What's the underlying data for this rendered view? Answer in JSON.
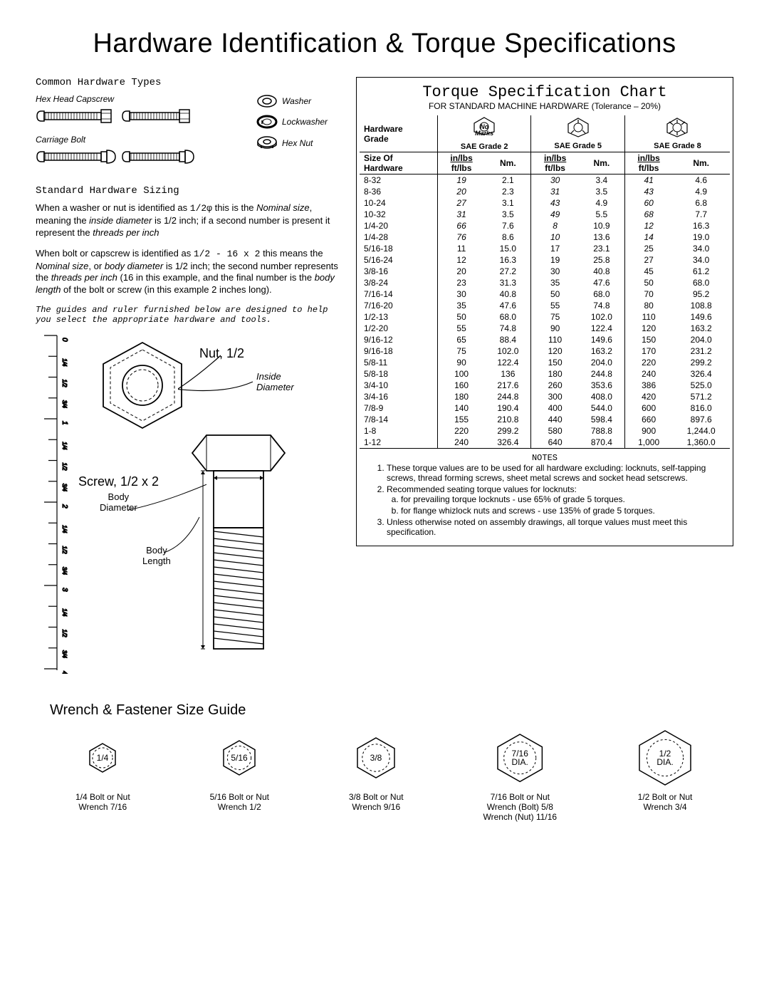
{
  "title": "Hardware Identification  &  Torque Specifications",
  "common_hw_heading": "Common Hardware Types",
  "hw_types": {
    "hex_head": "Hex Head Capscrew",
    "carriage": "Carriage Bolt",
    "washer": "Washer",
    "lockwasher": "Lockwasher",
    "hexnut": "Hex Nut"
  },
  "sizing_heading": "Standard Hardware Sizing",
  "para1_a": "When a washer or nut is identified as ",
  "para1_mono": "1/2φ",
  "para1_b": " this is the ",
  "para1_ital1": "Nominal size",
  "para1_c": ", meaning the ",
  "para1_ital2": "inside diameter",
  "para1_d": " is 1/2 inch; if a second number is present it represent the ",
  "para1_ital3": "threads per inch",
  "para2_a": "When bolt or capscrew is identified as ",
  "para2_mono": "1/2 - 16 x 2",
  "para2_b": " this means the ",
  "para2_ital1": "Nominal size",
  "para2_c": ", or ",
  "para2_ital2": "body diameter",
  "para2_d": " is 1/2 inch; the second number represents the ",
  "para2_ital3": "threads per inch",
  "para2_e": " (16 in this example, and the final number is the ",
  "para2_ital4": "body length",
  "para2_f": " of the bolt or screw (in this example 2 inches long).",
  "guide_note": "The guides and ruler furnished below are designed to help you select the appropriate hardware and tools.",
  "diagram": {
    "nut_label": "Nut, 1/2",
    "inside_dia": "Inside\nDiameter",
    "screw_label": "Screw, 1/2 x 2",
    "body_dia": "Body\nDiameter",
    "body_len": "Body\nLength",
    "ruler_major": [
      "0",
      "1",
      "2",
      "3",
      "4"
    ],
    "ruler_minor": [
      "1/4",
      "1/2",
      "3/4"
    ]
  },
  "chart": {
    "title": "Torque Specification Chart",
    "subtitle": "FOR STANDARD MACHINE HARDWARE (Tolerance – 20%)",
    "grade_header": "Hardware\nGrade",
    "no_marks": "No\nMarks",
    "grades": [
      "SAE Grade 2",
      "SAE Grade 5",
      "SAE Grade 8"
    ],
    "size_header": "Size Of\nHardware",
    "unit_inlbs": "in/lbs",
    "unit_ftlbs": "ft/lbs",
    "unit_nm": "Nm.",
    "rows": [
      {
        "size": "8-32",
        "g2": [
          "19",
          "2.1"
        ],
        "g5": [
          "30",
          "3.4"
        ],
        "g8": [
          "41",
          "4.6"
        ],
        "ital": true
      },
      {
        "size": "8-36",
        "g2": [
          "20",
          "2.3"
        ],
        "g5": [
          "31",
          "3.5"
        ],
        "g8": [
          "43",
          "4.9"
        ],
        "ital": true
      },
      {
        "size": "10-24",
        "g2": [
          "27",
          "3.1"
        ],
        "g5": [
          "43",
          "4.9"
        ],
        "g8": [
          "60",
          "6.8"
        ],
        "ital": true
      },
      {
        "size": "10-32",
        "g2": [
          "31",
          "3.5"
        ],
        "g5": [
          "49",
          "5.5"
        ],
        "g8": [
          "68",
          "7.7"
        ],
        "ital": true
      },
      {
        "size": "1/4-20",
        "g2": [
          "66",
          "7.6"
        ],
        "g5": [
          "8",
          "10.9"
        ],
        "g8": [
          "12",
          "16.3"
        ],
        "ital": true
      },
      {
        "size": "1/4-28",
        "g2": [
          "76",
          "8.6"
        ],
        "g5": [
          "10",
          "13.6"
        ],
        "g8": [
          "14",
          "19.0"
        ],
        "ital": true
      },
      {
        "size": "5/16-18",
        "g2": [
          "11",
          "15.0"
        ],
        "g5": [
          "17",
          "23.1"
        ],
        "g8": [
          "25",
          "34.0"
        ]
      },
      {
        "size": "5/16-24",
        "g2": [
          "12",
          "16.3"
        ],
        "g5": [
          "19",
          "25.8"
        ],
        "g8": [
          "27",
          "34.0"
        ]
      },
      {
        "size": "3/8-16",
        "g2": [
          "20",
          "27.2"
        ],
        "g5": [
          "30",
          "40.8"
        ],
        "g8": [
          "45",
          "61.2"
        ]
      },
      {
        "size": "3/8-24",
        "g2": [
          "23",
          "31.3"
        ],
        "g5": [
          "35",
          "47.6"
        ],
        "g8": [
          "50",
          "68.0"
        ]
      },
      {
        "size": "7/16-14",
        "g2": [
          "30",
          "40.8"
        ],
        "g5": [
          "50",
          "68.0"
        ],
        "g8": [
          "70",
          "95.2"
        ]
      },
      {
        "size": "7/16-20",
        "g2": [
          "35",
          "47.6"
        ],
        "g5": [
          "55",
          "74.8"
        ],
        "g8": [
          "80",
          "108.8"
        ]
      },
      {
        "size": "1/2-13",
        "g2": [
          "50",
          "68.0"
        ],
        "g5": [
          "75",
          "102.0"
        ],
        "g8": [
          "110",
          "149.6"
        ]
      },
      {
        "size": "1/2-20",
        "g2": [
          "55",
          "74.8"
        ],
        "g5": [
          "90",
          "122.4"
        ],
        "g8": [
          "120",
          "163.2"
        ]
      },
      {
        "size": "9/16-12",
        "g2": [
          "65",
          "88.4"
        ],
        "g5": [
          "110",
          "149.6"
        ],
        "g8": [
          "150",
          "204.0"
        ]
      },
      {
        "size": "9/16-18",
        "g2": [
          "75",
          "102.0"
        ],
        "g5": [
          "120",
          "163.2"
        ],
        "g8": [
          "170",
          "231.2"
        ]
      },
      {
        "size": "5/8-11",
        "g2": [
          "90",
          "122.4"
        ],
        "g5": [
          "150",
          "204.0"
        ],
        "g8": [
          "220",
          "299.2"
        ]
      },
      {
        "size": "5/8-18",
        "g2": [
          "100",
          "136"
        ],
        "g5": [
          "180",
          "244.8"
        ],
        "g8": [
          "240",
          "326.4"
        ]
      },
      {
        "size": "3/4-10",
        "g2": [
          "160",
          "217.6"
        ],
        "g5": [
          "260",
          "353.6"
        ],
        "g8": [
          "386",
          "525.0"
        ]
      },
      {
        "size": "3/4-16",
        "g2": [
          "180",
          "244.8"
        ],
        "g5": [
          "300",
          "408.0"
        ],
        "g8": [
          "420",
          "571.2"
        ]
      },
      {
        "size": "7/8-9",
        "g2": [
          "140",
          "190.4"
        ],
        "g5": [
          "400",
          "544.0"
        ],
        "g8": [
          "600",
          "816.0"
        ]
      },
      {
        "size": "7/8-14",
        "g2": [
          "155",
          "210.8"
        ],
        "g5": [
          "440",
          "598.4"
        ],
        "g8": [
          "660",
          "897.6"
        ]
      },
      {
        "size": "1-8",
        "g2": [
          "220",
          "299.2"
        ],
        "g5": [
          "580",
          "788.8"
        ],
        "g8": [
          "900",
          "1,244.0"
        ]
      },
      {
        "size": "1-12",
        "g2": [
          "240",
          "326.4"
        ],
        "g5": [
          "640",
          "870.4"
        ],
        "g8": [
          "1,000",
          "1,360.0"
        ]
      }
    ],
    "notes_title": "NOTES",
    "notes": [
      "These torque values are to be used for all hardware excluding: locknuts, self-tapping screws, thread forming screws, sheet metal screws and socket head setscrews.",
      "Recommended seating torque values for locknuts:",
      "Unless otherwise noted on assembly drawings, all torque values must meet this specification."
    ],
    "notes_sub": [
      "for prevailing torque locknuts - use 65% of grade 5 torques.",
      "for flange whizlock nuts and screws - use 135% of grade 5 torques."
    ]
  },
  "wrench": {
    "title": "Wrench & Fastener Size Guide",
    "items": [
      {
        "hex": "1/4",
        "hex2": "",
        "scale": 0.55,
        "l1": "1/4  Bolt or Nut",
        "l2": "Wrench 7/16",
        "l3": ""
      },
      {
        "hex": "5/16",
        "hex2": "",
        "scale": 0.65,
        "l1": "5/16  Bolt or Nut",
        "l2": "Wrench 1/2",
        "l3": ""
      },
      {
        "hex": "3/8",
        "hex2": "",
        "scale": 0.75,
        "l1": "3/8  Bolt or Nut",
        "l2": "Wrench 9/16",
        "l3": ""
      },
      {
        "hex": "7/16",
        "hex2": "DIA.",
        "scale": 0.88,
        "l1": "7/16  Bolt or Nut",
        "l2": "Wrench (Bolt) 5/8",
        "l3": "Wrench (Nut) 11/16"
      },
      {
        "hex": "1/2",
        "hex2": "DIA.",
        "scale": 1.0,
        "l1": "1/2  Bolt or Nut",
        "l2": "Wrench 3/4",
        "l3": ""
      }
    ]
  },
  "colors": {
    "line": "#000",
    "bg": "#fff"
  }
}
